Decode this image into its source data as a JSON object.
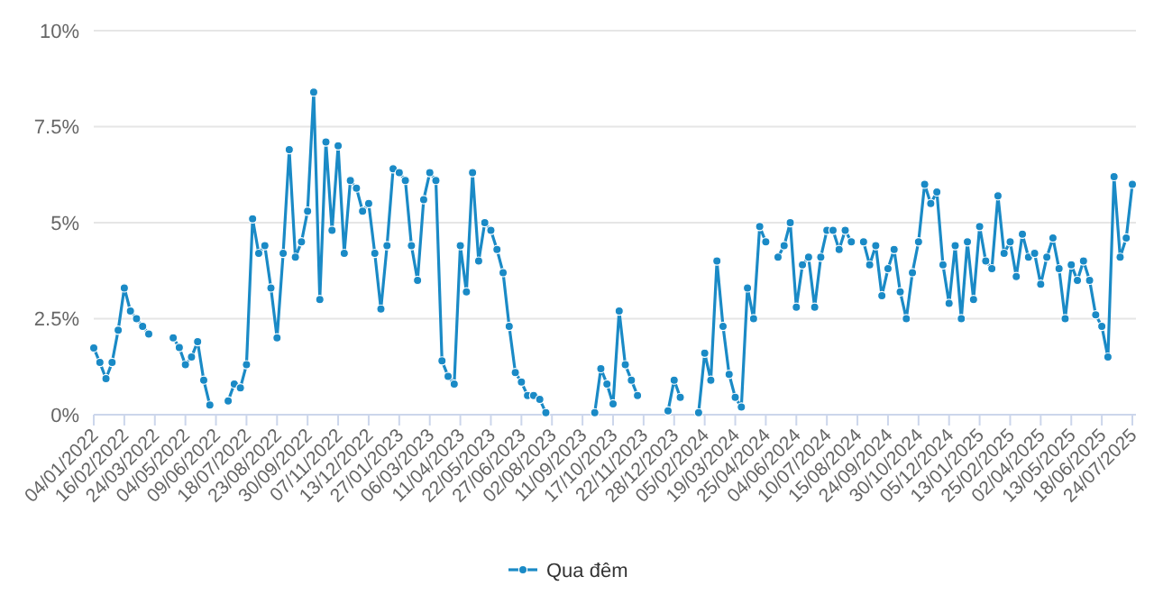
{
  "chart_data": {
    "type": "line",
    "categories": [
      "04/01/2022",
      null,
      null,
      null,
      null,
      "16/02/2022",
      null,
      null,
      null,
      null,
      "24/03/2022",
      null,
      null,
      null,
      null,
      "04/05/2022",
      null,
      null,
      null,
      null,
      "09/06/2022",
      null,
      null,
      null,
      null,
      "18/07/2022",
      null,
      null,
      null,
      null,
      "23/08/2022",
      null,
      null,
      null,
      null,
      "30/09/2022",
      null,
      null,
      null,
      null,
      "07/11/2022",
      null,
      null,
      null,
      null,
      "13/12/2022",
      null,
      null,
      null,
      null,
      "27/01/2023",
      null,
      null,
      null,
      null,
      "06/03/2023",
      null,
      null,
      null,
      null,
      "11/04/2023",
      null,
      null,
      null,
      null,
      "22/05/2023",
      null,
      null,
      null,
      null,
      "27/06/2023",
      null,
      null,
      null,
      null,
      "02/08/2023",
      null,
      null,
      null,
      null,
      "11/09/2023",
      null,
      null,
      null,
      null,
      "17/10/2023",
      null,
      null,
      null,
      null,
      "22/11/2023",
      null,
      null,
      null,
      null,
      "28/12/2023",
      null,
      null,
      null,
      null,
      "05/02/2024",
      null,
      null,
      null,
      null,
      "19/03/2024",
      null,
      null,
      null,
      null,
      "25/04/2024",
      null,
      null,
      null,
      null,
      "04/06/2024",
      null,
      null,
      null,
      null,
      "10/07/2024",
      null,
      null,
      null,
      null,
      "15/08/2024",
      null,
      null,
      null,
      null,
      "24/09/2024",
      null,
      null,
      null,
      null,
      "30/10/2024",
      null,
      null,
      null,
      null,
      "05/12/2024",
      null,
      null,
      null,
      null,
      "13/01/2025",
      null,
      null,
      null,
      null,
      "25/02/2025",
      null,
      null,
      null,
      null,
      "02/04/2025",
      null,
      null,
      null,
      null,
      "13/05/2025",
      null,
      null,
      null,
      null,
      "18/06/2025",
      null,
      null,
      null,
      null,
      "24/07/2025"
    ],
    "series": [
      {
        "name": "Qua đêm",
        "color": "#1a8ac6",
        "values": [
          1.74,
          1.36,
          0.94,
          1.36,
          2.2,
          3.3,
          2.7,
          2.5,
          2.3,
          2.1,
          null,
          null,
          null,
          2.0,
          1.75,
          1.3,
          1.5,
          1.9,
          0.9,
          0.25,
          null,
          null,
          0.36,
          0.8,
          0.7,
          1.3,
          5.1,
          4.2,
          4.4,
          3.3,
          2.0,
          4.2,
          6.9,
          4.1,
          4.5,
          5.3,
          8.4,
          3.0,
          7.1,
          4.8,
          7.0,
          4.2,
          6.1,
          5.9,
          5.3,
          5.5,
          4.2,
          2.75,
          4.4,
          6.4,
          6.3,
          6.1,
          4.4,
          3.5,
          5.6,
          6.3,
          6.1,
          1.4,
          1.0,
          0.8,
          4.4,
          3.2,
          6.3,
          4.0,
          5.0,
          4.8,
          4.3,
          3.7,
          2.3,
          1.1,
          0.85,
          0.5,
          0.5,
          0.4,
          0.05,
          null,
          null,
          null,
          null,
          null,
          null,
          null,
          0.05,
          1.2,
          0.8,
          0.28,
          2.7,
          1.3,
          0.9,
          0.5,
          null,
          null,
          null,
          null,
          0.1,
          0.9,
          0.45,
          null,
          null,
          0.05,
          1.6,
          0.9,
          4.0,
          2.3,
          1.05,
          0.45,
          0.2,
          3.3,
          2.5,
          4.9,
          4.5,
          null,
          4.1,
          4.4,
          5.0,
          2.8,
          3.9,
          4.1,
          2.8,
          4.1,
          4.8,
          4.8,
          4.3,
          4.8,
          4.5,
          null,
          4.5,
          3.9,
          4.4,
          3.1,
          3.8,
          4.3,
          3.2,
          2.5,
          3.7,
          4.5,
          6.0,
          5.5,
          5.8,
          3.9,
          2.9,
          4.4,
          2.5,
          4.5,
          3.0,
          4.9,
          4.0,
          3.8,
          5.7,
          4.2,
          4.5,
          3.6,
          4.7,
          4.1,
          4.2,
          3.4,
          4.1,
          4.6,
          3.8,
          2.5,
          3.9,
          3.5,
          4.0,
          3.5,
          2.6,
          2.3,
          1.5,
          6.2,
          4.1,
          4.6,
          6.0
        ]
      }
    ],
    "ylim": [
      0,
      10
    ],
    "yticks": [
      {
        "value": 0,
        "label": "0%"
      },
      {
        "value": 2.5,
        "label": "2.5%"
      },
      {
        "value": 5,
        "label": "5%"
      },
      {
        "value": 7.5,
        "label": "7.5%"
      },
      {
        "value": 10,
        "label": "10%"
      }
    ],
    "grid": "y",
    "legend": "bottom",
    "marker": "circle",
    "line_style": "solid"
  }
}
